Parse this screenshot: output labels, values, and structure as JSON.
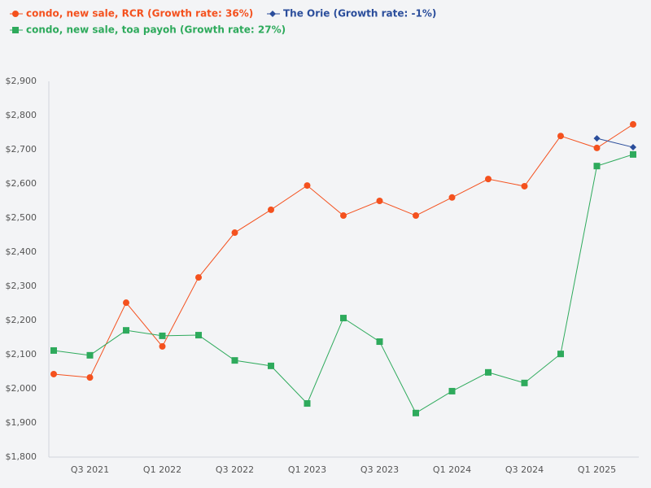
{
  "chart_data": {
    "type": "line",
    "categories": [
      null,
      "Q3 2021",
      null,
      "Q1 2022",
      null,
      "Q3 2022",
      null,
      "Q1 2023",
      null,
      "Q3 2023",
      null,
      "Q1 2024",
      null,
      "Q3 2024",
      null,
      "Q1 2025",
      null
    ],
    "series": [
      {
        "name": "condo, new sale, RCR (Growth rate: 36%)",
        "color": "#f4511e",
        "marker": "circle",
        "values": [
          2043,
          2033,
          2252,
          2124,
          2326,
          2457,
          2524,
          2595,
          2507,
          2550,
          2507,
          2560,
          2614,
          2593,
          2740,
          2705,
          2774
        ]
      },
      {
        "name": "condo, new sale, toa payoh (Growth rate: 27%)",
        "color": "#2eaa5c",
        "marker": "square",
        "values": [
          2112,
          2098,
          2171,
          2155,
          2157,
          2083,
          2067,
          1957,
          2207,
          2138,
          1929,
          1993,
          2048,
          2017,
          2102,
          2652,
          2686
        ]
      },
      {
        "name": "The Orie (Growth rate: -1%)",
        "color": "#2a4d9b",
        "marker": "diamond",
        "values": [
          null,
          null,
          null,
          null,
          null,
          null,
          null,
          null,
          null,
          null,
          null,
          null,
          null,
          null,
          null,
          2733,
          2707
        ]
      }
    ],
    "ylim": [
      1800,
      2900
    ],
    "yticks": [
      {
        "value": 1800,
        "label": "$1,800"
      },
      {
        "value": 1900,
        "label": "$1,900"
      },
      {
        "value": 2000,
        "label": "$2,000"
      },
      {
        "value": 2100,
        "label": "$2,100"
      },
      {
        "value": 2200,
        "label": "$2,200"
      },
      {
        "value": 2300,
        "label": "$2,300"
      },
      {
        "value": 2400,
        "label": "$2,400"
      },
      {
        "value": 2500,
        "label": "$2,500"
      },
      {
        "value": 2600,
        "label": "$2,600"
      },
      {
        "value": 2700,
        "label": "$2,700"
      },
      {
        "value": 2800,
        "label": "$2,800"
      },
      {
        "value": 2900,
        "label": "$2,900"
      }
    ],
    "grid": false
  }
}
